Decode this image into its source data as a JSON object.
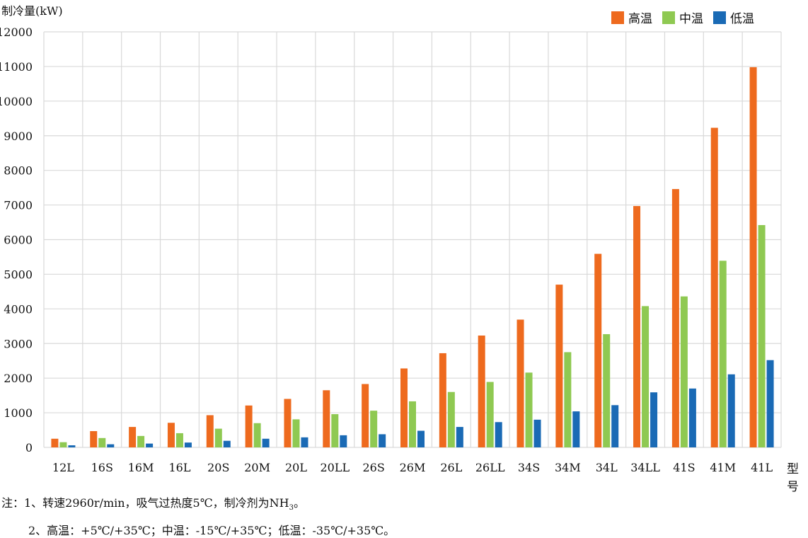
{
  "chart_data": {
    "type": "bar",
    "ylabel": "制冷量(kW)",
    "xlabel": "型号",
    "ylim": [
      0,
      12000
    ],
    "yticks": [
      0,
      1000,
      2000,
      3000,
      4000,
      5000,
      6000,
      7000,
      8000,
      9000,
      10000,
      11000,
      12000
    ],
    "grid": true,
    "legend_position": "top-right",
    "categories": [
      "12L",
      "16S",
      "16M",
      "16L",
      "20S",
      "20M",
      "20L",
      "20LL",
      "26S",
      "26M",
      "26L",
      "26LL",
      "34S",
      "34M",
      "34L",
      "34LL",
      "41S",
      "41M",
      "41L"
    ],
    "series": [
      {
        "name": "高温",
        "color": "#ee6a1e",
        "values": [
          250,
          470,
          590,
          710,
          930,
          1210,
          1400,
          1650,
          1830,
          2280,
          2720,
          3230,
          3690,
          4700,
          5590,
          6970,
          7460,
          9230,
          10980
        ]
      },
      {
        "name": "中温",
        "color": "#8fc952",
        "values": [
          150,
          270,
          330,
          410,
          540,
          700,
          810,
          960,
          1060,
          1330,
          1600,
          1890,
          2160,
          2750,
          3270,
          4080,
          4360,
          5390,
          6420
        ]
      },
      {
        "name": "低温",
        "color": "#1a6ab5",
        "values": [
          60,
          90,
          110,
          140,
          190,
          250,
          290,
          350,
          380,
          480,
          590,
          730,
          800,
          1040,
          1220,
          1590,
          1700,
          2110,
          2520
        ]
      }
    ]
  },
  "notes": {
    "note1_before": "注：1、转速2960r/min，吸气过热度5℃，制冷剂为NH",
    "note1_sub": "3",
    "note1_after": "。",
    "note2": "2、高温：+5℃/+35℃；中温：-15℃/+35℃；低温：-35℃/+35℃。"
  }
}
